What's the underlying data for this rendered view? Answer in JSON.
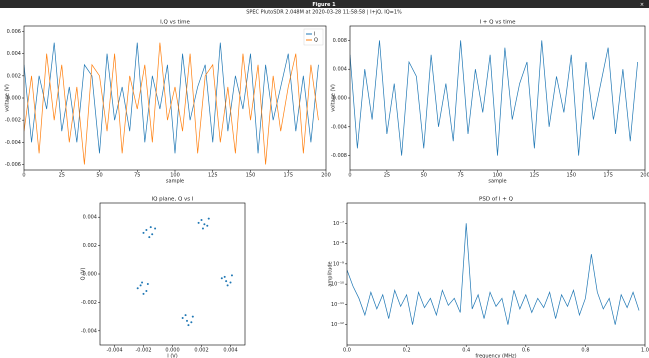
{
  "window_title": "Figure 1",
  "suptitle": "SPEC PlutoSDR 2.048M at 2020-03-28 11:58:58 | I+jQ, IQ=1%",
  "chart_data": [
    {
      "type": "line",
      "title": "I,Q vs time",
      "xlabel": "sample",
      "ylabel": "voltage (V)",
      "x": [
        0,
        5,
        10,
        15,
        20,
        25,
        30,
        35,
        40,
        45,
        50,
        55,
        60,
        65,
        70,
        75,
        80,
        85,
        90,
        95,
        100,
        105,
        110,
        115,
        120,
        125,
        130,
        135,
        140,
        145,
        150,
        155,
        160,
        165,
        170,
        175,
        180,
        185,
        190,
        195
      ],
      "series": [
        {
          "name": "I",
          "color": "#1f77b4",
          "values": [
            0.003,
            -0.004,
            0.002,
            -0.001,
            0.005,
            -0.003,
            0.001,
            -0.004,
            0.003,
            0.002,
            -0.005,
            0.004,
            -0.002,
            0.001,
            -0.003,
            0.005,
            -0.004,
            0.002,
            -0.001,
            0.003,
            -0.005,
            0.004,
            -0.002,
            0.001,
            0.003,
            -0.004,
            0.005,
            -0.003,
            0.002,
            -0.001,
            0.004,
            -0.005,
            0.003,
            -0.002,
            0.001,
            0.004,
            -0.003,
            0.002,
            -0.004,
            0.003
          ]
        },
        {
          "name": "Q",
          "color": "#ff7f0e",
          "values": [
            -0.003,
            0.002,
            -0.005,
            0.004,
            -0.002,
            0.003,
            -0.004,
            0.001,
            -0.006,
            0.003,
            0.002,
            -0.003,
            0.004,
            -0.005,
            0.002,
            -0.001,
            0.003,
            -0.004,
            0.005,
            -0.002,
            0.001,
            -0.003,
            0.004,
            -0.005,
            0.002,
            0.003,
            -0.004,
            0.001,
            -0.005,
            0.004,
            -0.002,
            0.003,
            -0.006,
            0.002,
            -0.003,
            0.001,
            0.004,
            -0.005,
            0.003,
            -0.002
          ]
        }
      ],
      "xlim": [
        0,
        200
      ],
      "xticks": [
        0,
        25,
        50,
        75,
        100,
        125,
        150,
        175,
        200
      ],
      "ylim": [
        -0.0065,
        0.0065
      ],
      "yticks": [
        -0.006,
        -0.004,
        -0.002,
        {
          "value": 0,
          "label": "0.000"
        },
        0.002,
        0.004,
        0.006
      ],
      "legend": "upper right"
    },
    {
      "type": "line",
      "title": "I + Q vs time",
      "xlabel": "sample",
      "ylabel": "voltage (V)",
      "x": [
        0,
        5,
        10,
        15,
        20,
        25,
        30,
        35,
        40,
        45,
        50,
        55,
        60,
        65,
        70,
        75,
        80,
        85,
        90,
        95,
        100,
        105,
        110,
        115,
        120,
        125,
        130,
        135,
        140,
        145,
        150,
        155,
        160,
        165,
        170,
        175,
        180,
        185,
        190,
        195
      ],
      "series": [
        {
          "name": "I + Q",
          "color": "#1f77b4",
          "values": [
            0.006,
            -0.007,
            0.004,
            -0.003,
            0.008,
            -0.005,
            0.002,
            -0.008,
            0.005,
            0.003,
            -0.007,
            0.006,
            -0.004,
            0.002,
            -0.006,
            0.008,
            -0.005,
            0.004,
            -0.002,
            0.006,
            -0.008,
            0.007,
            -0.003,
            0.002,
            0.005,
            -0.007,
            0.008,
            -0.004,
            0.003,
            -0.002,
            0.006,
            -0.008,
            0.005,
            -0.003,
            0.002,
            0.007,
            -0.005,
            0.004,
            -0.006,
            0.005
          ]
        }
      ],
      "xlim": [
        0,
        200
      ],
      "xticks": [
        0,
        25,
        50,
        75,
        100,
        125,
        150,
        175,
        200
      ],
      "ylim": [
        -0.01,
        0.01
      ],
      "yticks": [
        -0.008,
        -0.004,
        {
          "value": 0,
          "label": "0.000"
        },
        0.004,
        0.008
      ]
    },
    {
      "type": "scatter",
      "title": "IQ plane, Q vs I",
      "xlabel": "I (V)",
      "ylabel": "Q (V)",
      "color": "#1f77b4",
      "x": [
        -0.0018,
        -0.0014,
        -0.0016,
        -0.0012,
        -0.002,
        -0.0015,
        0.002,
        0.0024,
        0.0021,
        0.0018,
        0.0025,
        0.0022,
        -0.0022,
        -0.0018,
        -0.002,
        -0.0024,
        -0.0017,
        -0.0021,
        0.0036,
        0.004,
        0.0038,
        0.0034,
        0.0041,
        0.0037,
        0.0009,
        0.0013,
        0.0011,
        0.0007,
        0.0014,
        0.001
      ],
      "y": [
        0.0031,
        0.0028,
        0.0026,
        0.0032,
        0.0029,
        0.0033,
        0.0038,
        0.0034,
        0.0032,
        0.0036,
        0.0039,
        0.0035,
        -0.0008,
        -0.0012,
        -0.0014,
        -0.001,
        -0.0007,
        -0.0006,
        -0.0002,
        -0.0006,
        -0.0008,
        -0.0003,
        -0.0001,
        -0.0005,
        -0.0029,
        -0.0034,
        -0.0036,
        -0.0031,
        -0.003,
        -0.0033
      ],
      "xlim": [
        -0.005,
        0.005
      ],
      "xticks": [
        -0.004,
        -0.002,
        {
          "value": 0,
          "label": "0.000"
        },
        0.002,
        0.004
      ],
      "ylim": [
        -0.005,
        0.005
      ],
      "yticks": [
        -0.004,
        -0.002,
        {
          "value": 0,
          "label": "0.000"
        },
        0.002,
        0.004
      ]
    },
    {
      "type": "line",
      "title": "PSD of I + Q",
      "xlabel": "frequency (MHz)",
      "ylabel": "amplitude",
      "log_y": true,
      "x": [
        0,
        0.02,
        0.04,
        0.06,
        0.08,
        0.1,
        0.12,
        0.14,
        0.16,
        0.18,
        0.2,
        0.22,
        0.24,
        0.26,
        0.28,
        0.3,
        0.32,
        0.34,
        0.36,
        0.38,
        0.4,
        0.42,
        0.44,
        0.46,
        0.48,
        0.5,
        0.52,
        0.54,
        0.56,
        0.58,
        0.6,
        0.62,
        0.64,
        0.66,
        0.68,
        0.7,
        0.72,
        0.74,
        0.76,
        0.78,
        0.8,
        0.82,
        0.84,
        0.86,
        0.88,
        0.9,
        0.92,
        0.94,
        0.96,
        0.98
      ],
      "series": [
        {
          "name": "PSD",
          "color": "#1f77b4",
          "values": [
            5e-10,
            8e-11,
            2e-11,
            3e-12,
            4e-11,
            6e-12,
            3e-11,
            2e-12,
            5e-11,
            8e-12,
            3e-11,
            1e-12,
            4e-11,
            7e-12,
            2e-11,
            3e-12,
            5e-11,
            9e-12,
            2e-11,
            4e-12,
            1e-07,
            6e-12,
            3e-11,
            2e-12,
            4e-11,
            8e-12,
            2e-11,
            1e-12,
            5e-11,
            6e-12,
            3e-11,
            4e-12,
            2e-11,
            7e-12,
            4e-11,
            2e-12,
            3e-11,
            8e-12,
            5e-11,
            3e-12,
            2e-11,
            3e-09,
            4e-11,
            6e-12,
            2e-11,
            1e-12,
            3e-11,
            7e-12,
            4e-11,
            5e-12
          ]
        }
      ],
      "xlim": [
        0,
        1
      ],
      "xticks": [
        {
          "value": 0,
          "label": "0.0"
        },
        0.2,
        0.4,
        0.6,
        0.8,
        {
          "value": 1,
          "label": "1.0"
        }
      ],
      "ylim": [
        1e-13,
        1e-06
      ],
      "yticks": [
        {
          "value": 1e-12,
          "label": "10⁻¹²"
        },
        {
          "value": 1e-11,
          "label": "10⁻¹¹"
        },
        {
          "value": 1e-10,
          "label": "10⁻¹⁰"
        },
        {
          "value": 1e-09,
          "label": "10⁻⁹"
        },
        {
          "value": 1e-08,
          "label": "10⁻⁸"
        },
        {
          "value": 1e-07,
          "label": "10⁻⁷"
        }
      ]
    }
  ]
}
